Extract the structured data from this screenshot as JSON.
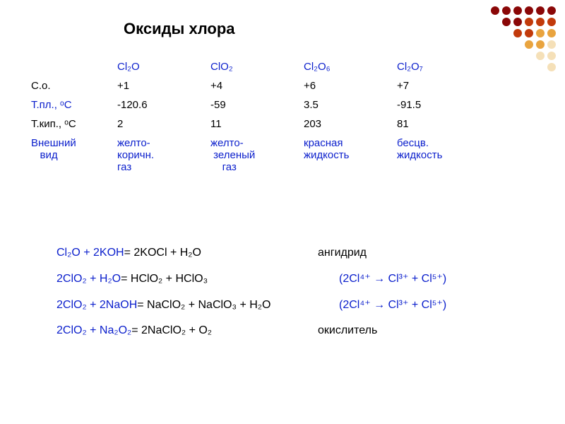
{
  "title": "Оксиды хлора",
  "dots": {
    "colors": {
      "dark": "#8a0707",
      "mid": "#c23a0b",
      "light": "#e9a43f",
      "faint": "#f5e0b8"
    },
    "grid": [
      [
        "dark",
        "dark",
        "dark",
        "dark",
        "dark",
        "dark"
      ],
      [
        "",
        "dark",
        "dark",
        "mid",
        "mid",
        "mid"
      ],
      [
        "",
        "",
        "mid",
        "mid",
        "light",
        "light"
      ],
      [
        "",
        "",
        "",
        "light",
        "light",
        "faint"
      ],
      [
        "",
        "",
        "",
        "",
        "faint",
        "faint"
      ],
      [
        "",
        "",
        "",
        "",
        "",
        "faint"
      ]
    ]
  },
  "table": {
    "headers": [
      "",
      "Cl₂O",
      "ClO₂",
      "Cl₂O₆",
      "Cl₂O₇"
    ],
    "rows": [
      {
        "label": "С.о.",
        "label_color": "black",
        "cells": [
          "+1",
          "+4",
          "+6",
          "+7"
        ],
        "cell_color": "black"
      },
      {
        "label": "Т.пл., ᵒС",
        "label_color": "blue",
        "cells": [
          "-120.6",
          "-59",
          "3.5",
          "-91.5"
        ],
        "cell_color": "black"
      },
      {
        "label": "Т.кип., ᵒС",
        "label_color": "black",
        "cells": [
          "2",
          "11",
          "203",
          "81"
        ],
        "cell_color": "black"
      },
      {
        "label": "Внешний\n   вид",
        "label_color": "blue",
        "cells": [
          "желто-\nкоричн.\nгаз",
          "желто-\n зеленый\n    газ",
          "красная\nжидкость",
          "бесцв.\nжидкость"
        ],
        "cell_color": "blue"
      }
    ]
  },
  "equations": [
    {
      "lhs": "Cl₂O + 2KOH",
      "rhs": " = 2KOCl + H₂O",
      "lhs_width": 370,
      "note": "ангидрид",
      "note_color": "black"
    },
    {
      "lhs": "2ClO₂ + H₂O",
      "rhs": " = HClO₂ + HClO₃",
      "lhs_width": 400,
      "note": "(2Cl⁴⁺ → Cl³⁺ + Cl⁵⁺)",
      "note_color": "blue"
    },
    {
      "lhs": "2ClO₂ + 2NaOH",
      "rhs": " = NaClO₂ + NaClO₃ + H₂O",
      "lhs_width": 400,
      "note": "(2Cl⁴⁺ → Cl³⁺ + Cl⁵⁺)",
      "note_color": "blue"
    },
    {
      "lhs": "2ClO₂ + Na₂O₂",
      "rhs": " = 2NaClO₂ + O₂",
      "lhs_width": 370,
      "note": "окислитель",
      "note_color": "black"
    }
  ]
}
